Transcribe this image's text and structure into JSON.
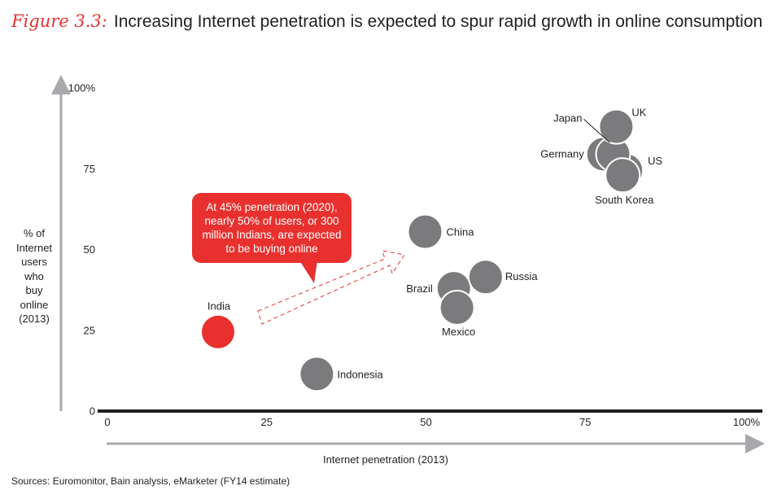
{
  "header": {
    "figure_label": "Figure 3.3:",
    "title": "Increasing Internet penetration is expected to spur rapid growth in online consumption"
  },
  "callout": {
    "text": "At 45% penetration (2020), nearly 50% of users, or 300 million Indians, are expected to be buying online"
  },
  "source": "Sources: Euromonitor, Bain analysis, eMarketer (FY14 estimate)",
  "colors": {
    "highlight": "#e8312f",
    "bubble": "#7b7b7d",
    "axis": "#a7a9ac",
    "baseline": "#231f20"
  },
  "chart_data": {
    "type": "scatter",
    "title": "Increasing Internet penetration is expected to spur rapid growth in online consumption",
    "xlabel": "Internet penetration (2013)",
    "ylabel": [
      "% of",
      "Internet",
      "users",
      "who",
      "buy",
      "online",
      "(2013)"
    ],
    "xlim": [
      0,
      100
    ],
    "ylim": [
      0,
      100
    ],
    "x_ticks": [
      "0",
      "25",
      "50",
      "75",
      "100%"
    ],
    "y_ticks": [
      "0",
      "25",
      "50",
      "75",
      "100%"
    ],
    "points": [
      {
        "name": "India",
        "x": 17.5,
        "y": 24.5,
        "highlight": true
      },
      {
        "name": "Indonesia",
        "x": 33,
        "y": 11.5
      },
      {
        "name": "China",
        "x": 50,
        "y": 55.5
      },
      {
        "name": "Brazil",
        "x": 54.5,
        "y": 38
      },
      {
        "name": "Mexico",
        "x": 55,
        "y": 32
      },
      {
        "name": "Russia",
        "x": 59.5,
        "y": 41.5
      },
      {
        "name": "Germany",
        "x": 78,
        "y": 79.5
      },
      {
        "name": "US",
        "x": 81.5,
        "y": 74.5
      },
      {
        "name": "Japan",
        "x": 79.5,
        "y": 79.5
      },
      {
        "name": "UK",
        "x": 80,
        "y": 88
      },
      {
        "name": "South Korea",
        "x": 81,
        "y": 73
      }
    ],
    "annotation": "At 45% penetration (2020), nearly 50% of users, or 300 million Indians, are expected to be buying online"
  }
}
